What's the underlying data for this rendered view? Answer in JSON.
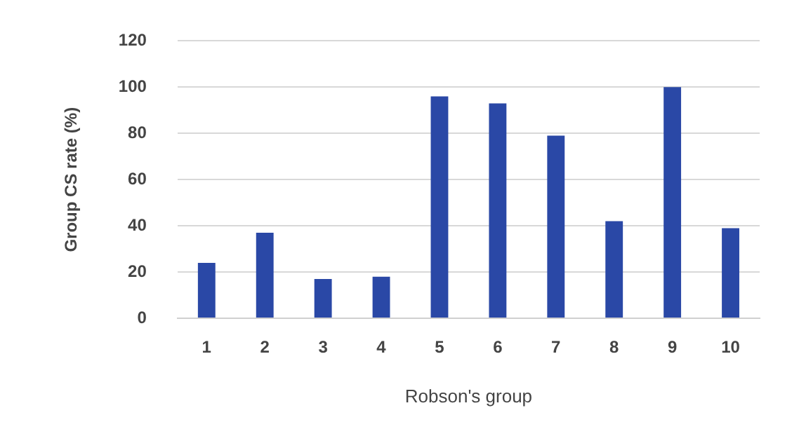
{
  "chart_data": {
    "type": "bar",
    "xlabel": "Robson's group",
    "ylabel": "Group CS rate (%)",
    "categories": [
      "1",
      "2",
      "3",
      "4",
      "5",
      "6",
      "7",
      "8",
      "9",
      "10"
    ],
    "values": [
      24,
      37,
      17,
      18,
      96,
      93,
      79,
      42,
      100,
      39
    ],
    "color": "#2a48a6",
    "ylim": [
      0,
      120
    ],
    "yticks": [
      0,
      20,
      40,
      60,
      80,
      100,
      120
    ],
    "grid": "y",
    "legend": false
  }
}
